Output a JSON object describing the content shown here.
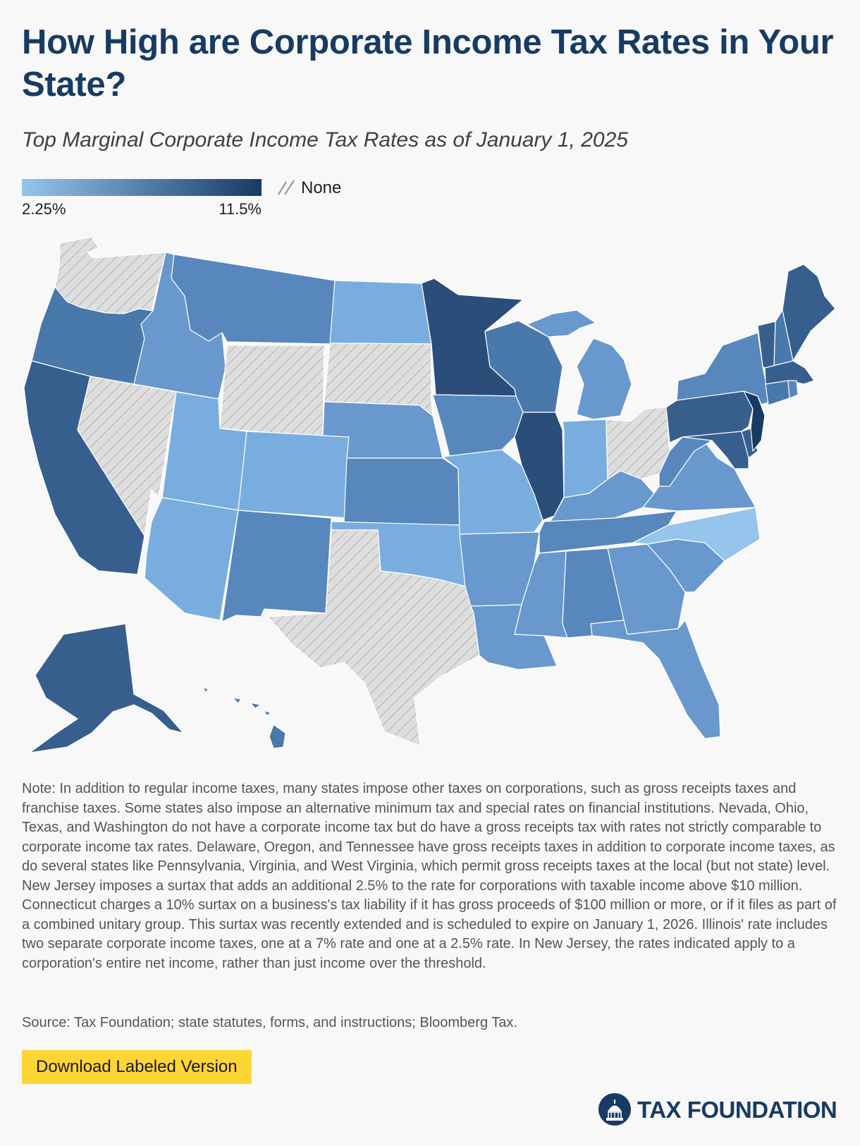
{
  "title": "How High are Corporate Income Tax Rates in Your State?",
  "subtitle": "Top Marginal Corporate Income Tax Rates as of January 1, 2025",
  "legend": {
    "min_label": "2.25%",
    "max_label": "11.5%",
    "none_label": "None",
    "min_color": "#95c4ed",
    "max_color": "#173b63",
    "none_color": "#dedede"
  },
  "states": [
    {
      "abbr": "WA",
      "tier": 0
    },
    {
      "abbr": "OR",
      "tier": 4
    },
    {
      "abbr": "CA",
      "tier": 5
    },
    {
      "abbr": "NV",
      "tier": 0
    },
    {
      "abbr": "ID",
      "tier": 2
    },
    {
      "abbr": "MT",
      "tier": 3
    },
    {
      "abbr": "WY",
      "tier": 0
    },
    {
      "abbr": "UT",
      "tier": 1
    },
    {
      "abbr": "CO",
      "tier": 1
    },
    {
      "abbr": "AZ",
      "tier": 1
    },
    {
      "abbr": "NM",
      "tier": 3
    },
    {
      "abbr": "ND",
      "tier": 1
    },
    {
      "abbr": "SD",
      "tier": 0
    },
    {
      "abbr": "NE",
      "tier": 2
    },
    {
      "abbr": "KS",
      "tier": 3
    },
    {
      "abbr": "OK",
      "tier": 1
    },
    {
      "abbr": "TX",
      "tier": 0
    },
    {
      "abbr": "MN",
      "tier": 6
    },
    {
      "abbr": "IA",
      "tier": 3
    },
    {
      "abbr": "MO",
      "tier": 1
    },
    {
      "abbr": "AR",
      "tier": 2
    },
    {
      "abbr": "LA",
      "tier": 2
    },
    {
      "abbr": "WI",
      "tier": 4
    },
    {
      "abbr": "IL",
      "tier": 6
    },
    {
      "abbr": "MI",
      "tier": 2
    },
    {
      "abbr": "IN",
      "tier": 1
    },
    {
      "abbr": "OH",
      "tier": 0
    },
    {
      "abbr": "KY",
      "tier": 2
    },
    {
      "abbr": "TN",
      "tier": 3
    },
    {
      "abbr": "MS",
      "tier": 2
    },
    {
      "abbr": "AL",
      "tier": 3
    },
    {
      "abbr": "GA",
      "tier": 2
    },
    {
      "abbr": "FL",
      "tier": 2
    },
    {
      "abbr": "SC",
      "tier": 2
    },
    {
      "abbr": "NC",
      "tier": 1
    },
    {
      "abbr": "VA",
      "tier": 2
    },
    {
      "abbr": "WV",
      "tier": 3
    },
    {
      "abbr": "PA",
      "tier": 5
    },
    {
      "abbr": "NY",
      "tier": 3
    },
    {
      "abbr": "VT",
      "tier": 5
    },
    {
      "abbr": "NH",
      "tier": 4
    },
    {
      "abbr": "ME",
      "tier": 5
    },
    {
      "abbr": "MA",
      "tier": 5
    },
    {
      "abbr": "RI",
      "tier": 3
    },
    {
      "abbr": "CT",
      "tier": 4
    },
    {
      "abbr": "NJ",
      "tier": 7
    },
    {
      "abbr": "DE",
      "tier": 5
    },
    {
      "abbr": "MD",
      "tier": 5
    },
    {
      "abbr": "AK",
      "tier": 5
    },
    {
      "abbr": "HI",
      "tier": 4
    }
  ],
  "tier_colors": [
    "none",
    "#7aaddf",
    "#6898cd",
    "#5787bc",
    "#4978ab",
    "#375f8e",
    "#2a4d7a",
    "#173b63"
  ],
  "special_fill": {
    "NC": "#95c4ed",
    "OK": "#7aaddf"
  },
  "note": "Note: In addition to regular income taxes, many states impose other taxes on corporations, such as gross receipts taxes and franchise taxes. Some states also impose an alternative minimum tax and special rates on financial institutions. Nevada, Ohio, Texas, and Washington do not have a corporate income tax but do have a gross receipts tax with rates not strictly comparable to corporate income tax rates. Delaware, Oregon, and Tennessee have gross receipts taxes in addition to corporate income taxes, as do several states like Pennsylvania, Virginia, and West Virginia, which permit gross receipts taxes at the local (but not state) level. New Jersey imposes a surtax that adds an additional 2.5% to the rate for corporations with taxable income above $10 million. Connecticut charges a 10% surtax on a business's tax liability if it has gross proceeds of $100 million or more, or if it files as part of a combined unitary group. This surtax was recently extended and is scheduled to expire on January 1, 2026. Illinois' rate includes two separate corporate income taxes, one at a 7% rate and one at a 2.5% rate. In New Jersey, the rates indicated apply to a corporation's entire net income, rather than just income over the threshold.",
  "source": "Source: Tax Foundation; state statutes, forms, and instructions; Bloomberg Tax.",
  "download_label": "Download Labeled Version",
  "brand": {
    "name": "TAX FOUNDATION",
    "logo_icon": "capitol-dome-icon"
  }
}
